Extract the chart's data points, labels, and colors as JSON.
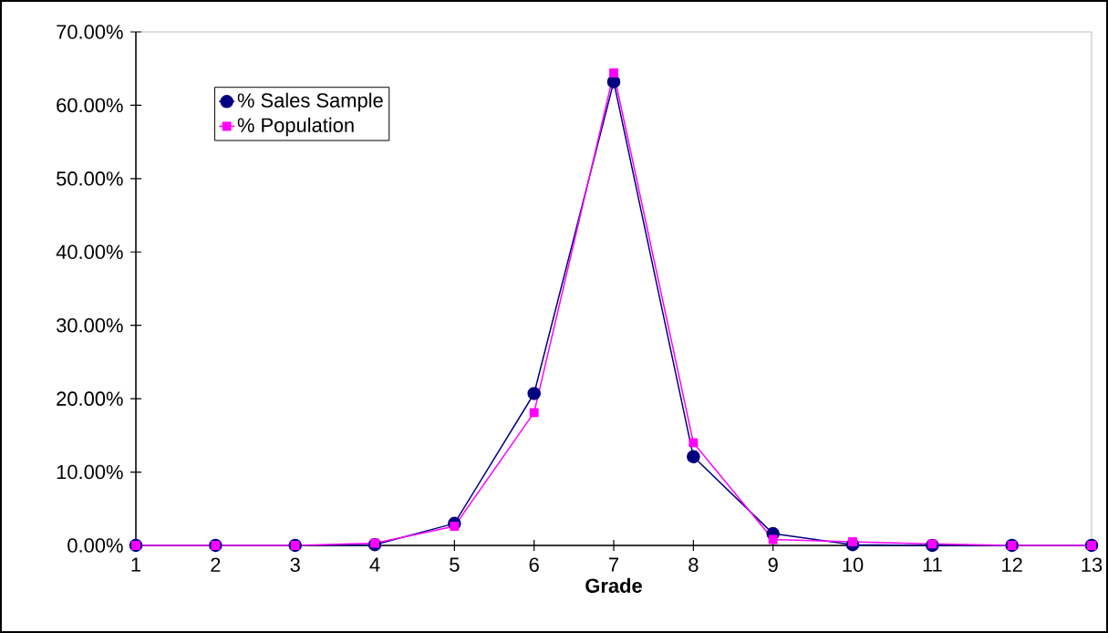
{
  "chart_data": {
    "type": "line",
    "xlabel": "Grade",
    "x": [
      1,
      2,
      3,
      4,
      5,
      6,
      7,
      8,
      9,
      10,
      11,
      12,
      13
    ],
    "series": [
      {
        "name": "% Sales Sample",
        "color": "#000080",
        "marker": "circle",
        "values": [
          0,
          0,
          0,
          0.1,
          3.0,
          20.7,
          63.2,
          12.1,
          1.6,
          0.1,
          0,
          0,
          0
        ]
      },
      {
        "name": "% Population",
        "color": "#ff00ff",
        "marker": "square",
        "values": [
          0,
          0,
          0,
          0.3,
          2.6,
          18.1,
          64.4,
          14.0,
          0.8,
          0.5,
          0.2,
          0,
          0
        ]
      }
    ],
    "xlim": [
      1,
      13
    ],
    "xticks": [
      1,
      2,
      3,
      4,
      5,
      6,
      7,
      8,
      9,
      10,
      11,
      12,
      13
    ],
    "ylim": [
      0,
      70
    ],
    "yticks": [
      {
        "value": 0,
        "label": "0.00%"
      },
      {
        "value": 10,
        "label": "10.00%"
      },
      {
        "value": 20,
        "label": "20.00%"
      },
      {
        "value": 30,
        "label": "30.00%"
      },
      {
        "value": 40,
        "label": "40.00%"
      },
      {
        "value": 50,
        "label": "50.00%"
      },
      {
        "value": 60,
        "label": "60.00%"
      },
      {
        "value": 70,
        "label": "70.00%"
      }
    ],
    "grid": false,
    "legend": "top left",
    "line_style": "solid"
  }
}
